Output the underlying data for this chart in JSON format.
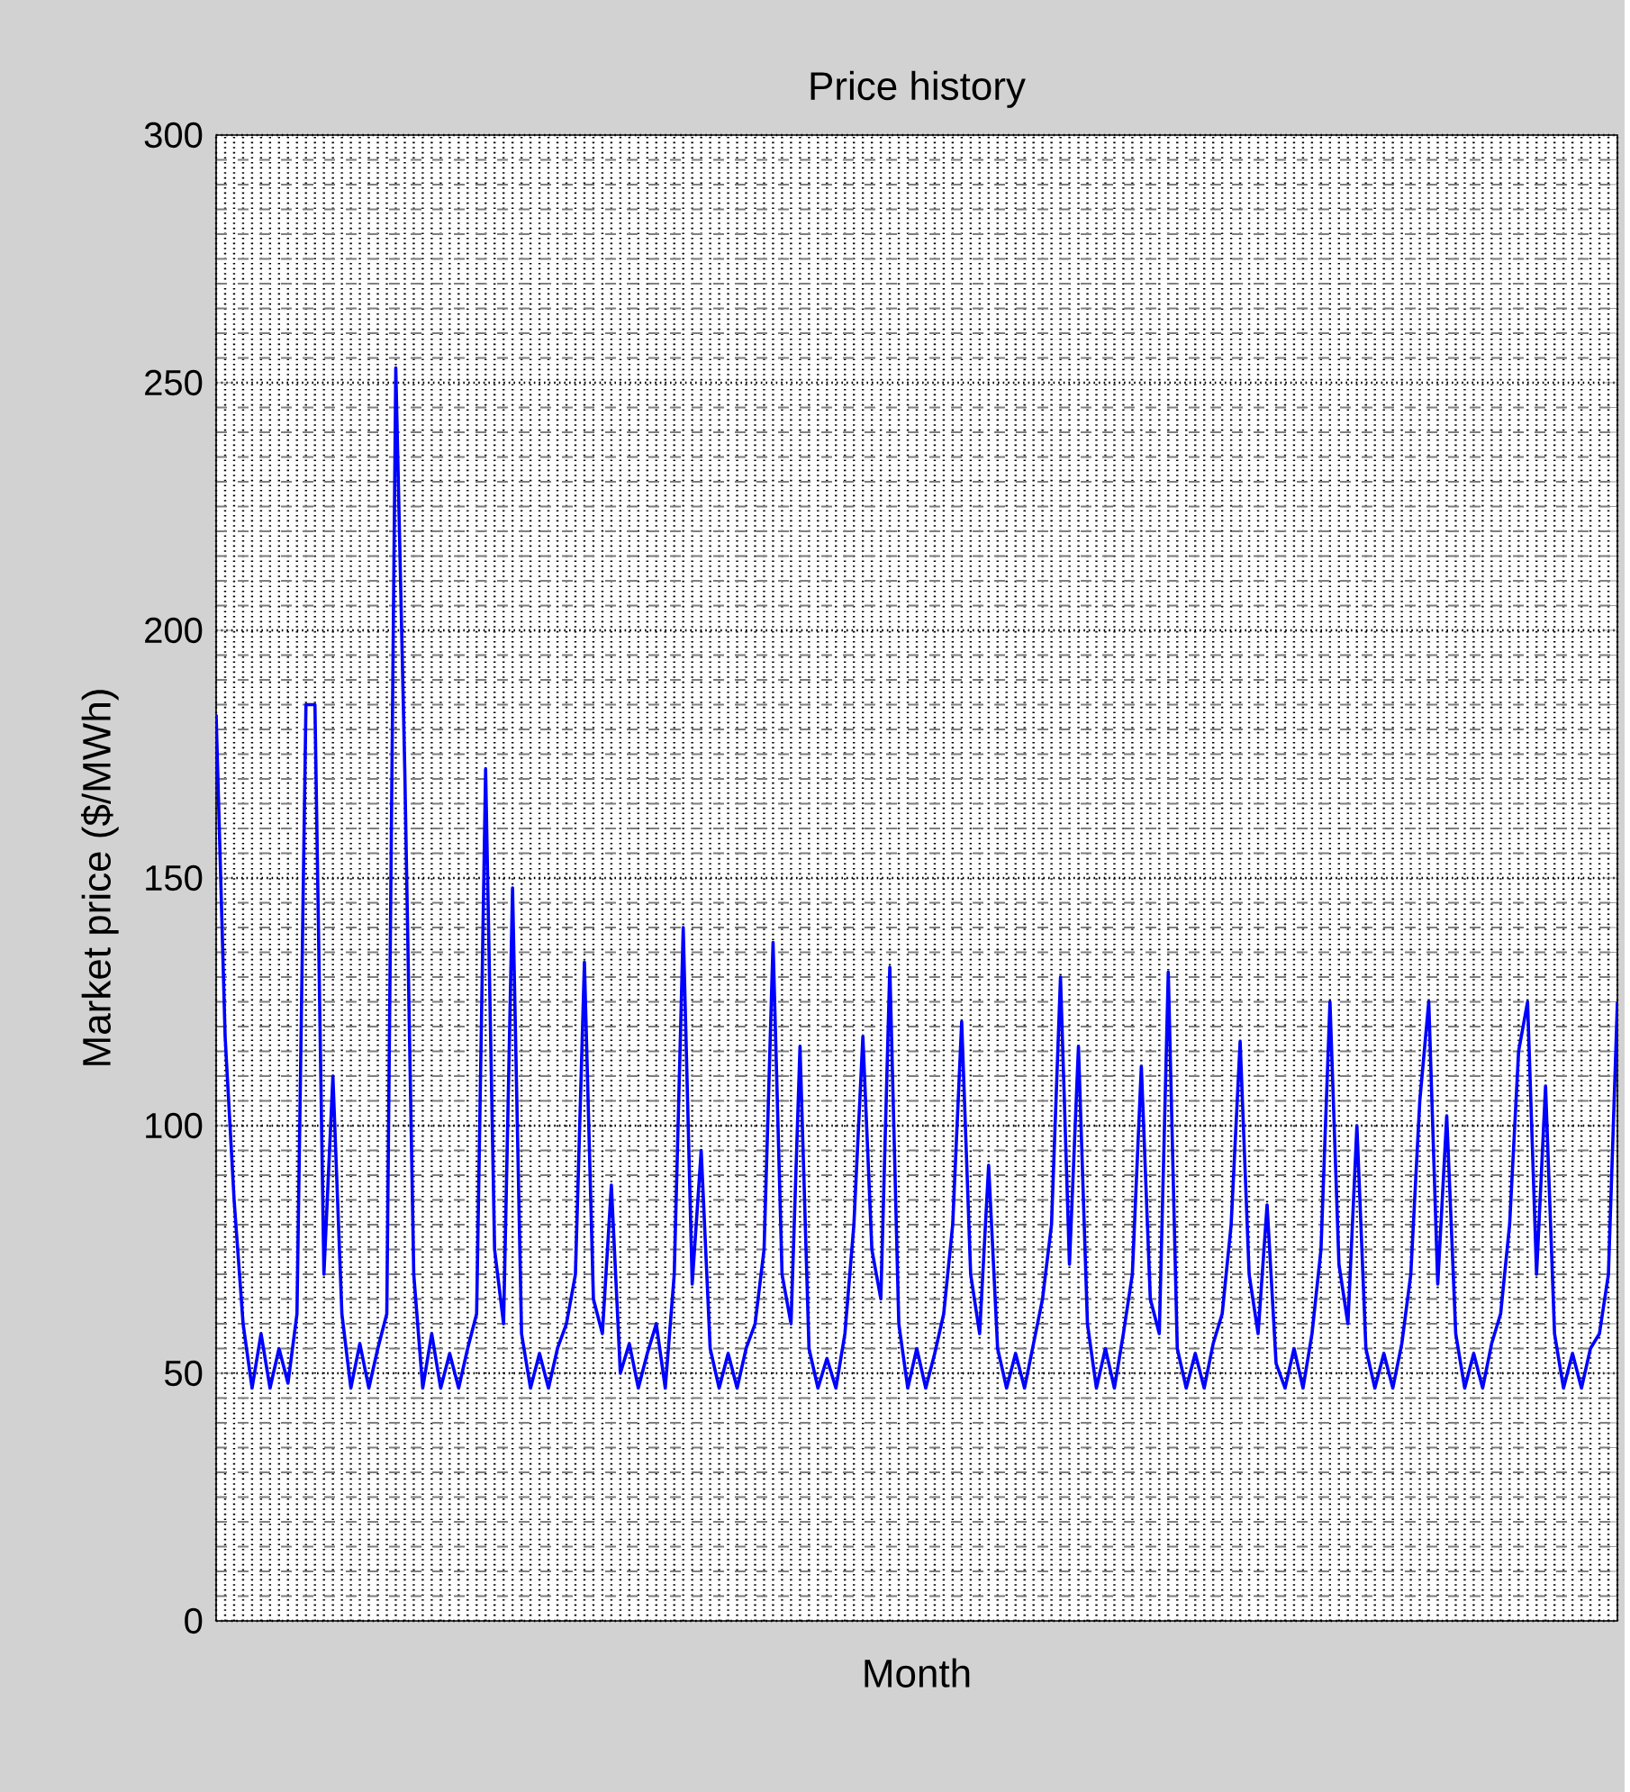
{
  "chart_data": {
    "type": "line",
    "title": "Price history",
    "xlabel": "Month",
    "ylabel": "Market price ($/MWh)",
    "categories": [
      null,
      null,
      null,
      null,
      null,
      null,
      null,
      null,
      null,
      null,
      null,
      null,
      null,
      null,
      null,
      null,
      null,
      null,
      null,
      null,
      null,
      null,
      null,
      null,
      null,
      null,
      null,
      null,
      null,
      null,
      null,
      null,
      null,
      null,
      null,
      null,
      null,
      null,
      null,
      null,
      null,
      null,
      null,
      null,
      null,
      null,
      null,
      null,
      null,
      null,
      null,
      null,
      null,
      null,
      null,
      null,
      null,
      null,
      null,
      null,
      null,
      null,
      null,
      null,
      null,
      null,
      null,
      null,
      null,
      null,
      null,
      null,
      null,
      null,
      null,
      null,
      null,
      null,
      null,
      null,
      null,
      null,
      null,
      null,
      null,
      null,
      null,
      null,
      null,
      null,
      null,
      null,
      null,
      null,
      null,
      null,
      null,
      null,
      null,
      null,
      null,
      null,
      null,
      null,
      null,
      null,
      null,
      null,
      null,
      null,
      null,
      null,
      null,
      null,
      null,
      null,
      null,
      null,
      null,
      null,
      null,
      null,
      null,
      null,
      null,
      null,
      null,
      null,
      null,
      null,
      null,
      null,
      null,
      null,
      null,
      null,
      null,
      null,
      null,
      null,
      null,
      null,
      null,
      null,
      null,
      null,
      null,
      null,
      null,
      null,
      null,
      null,
      null,
      null,
      null,
      null,
      null
    ],
    "series": [
      {
        "color": "#0000ff",
        "values": [
          183,
          118,
          85,
          60,
          47,
          58,
          47,
          55,
          48,
          62,
          185,
          185,
          70,
          110,
          62,
          47,
          56,
          47,
          55,
          62,
          253,
          172,
          70,
          47,
          58,
          47,
          54,
          47,
          55,
          62,
          172,
          75,
          60,
          148,
          58,
          47,
          54,
          47,
          55,
          60,
          70,
          133,
          65,
          58,
          88,
          50,
          56,
          47,
          54,
          60,
          47,
          70,
          140,
          68,
          95,
          55,
          47,
          54,
          47,
          55,
          60,
          75,
          137,
          70,
          60,
          116,
          55,
          47,
          53,
          47,
          58,
          80,
          118,
          75,
          65,
          132,
          60,
          47,
          55,
          47,
          54,
          62,
          80,
          121,
          70,
          58,
          92,
          55,
          47,
          54,
          47,
          56,
          65,
          80,
          130,
          72,
          116,
          60,
          47,
          55,
          47,
          58,
          70,
          112,
          65,
          58,
          131,
          55,
          47,
          54,
          47,
          56,
          62,
          80,
          117,
          70,
          58,
          84,
          52,
          47,
          55,
          47,
          58,
          75,
          125,
          72,
          60,
          100,
          55,
          47,
          54,
          47,
          56,
          70,
          105,
          125,
          68,
          102,
          58,
          47,
          54,
          47,
          56,
          62,
          80,
          115,
          125,
          70,
          108,
          58,
          47,
          54,
          47,
          55,
          58,
          70,
          125
        ]
      }
    ],
    "ylim": [
      0,
      300
    ],
    "yticks": [
      0,
      50,
      100,
      150,
      200,
      250,
      300
    ],
    "grid": true
  }
}
